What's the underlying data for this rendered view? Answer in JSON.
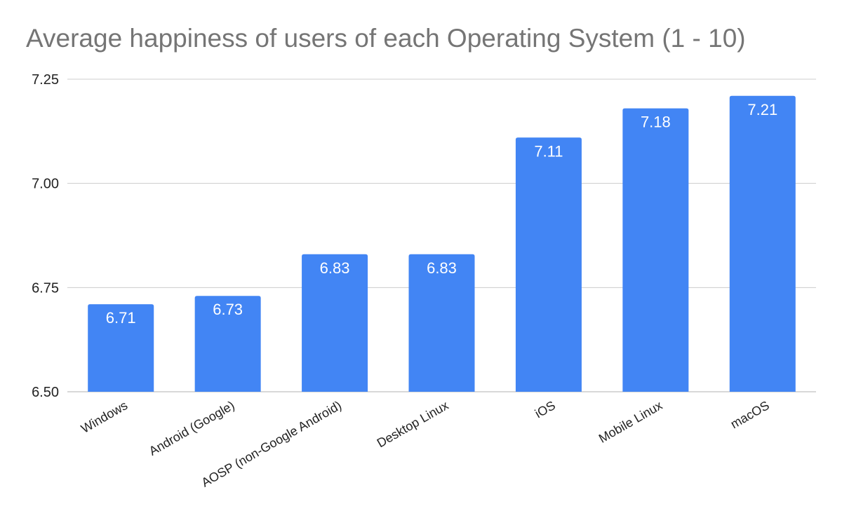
{
  "chart_data": {
    "type": "bar",
    "title": "Average happiness of users of each Operating System (1 - 10)",
    "xlabel": "",
    "ylabel": "",
    "categories": [
      "Windows",
      "Android (Google)",
      "AOSP (non-Google Android)",
      "Desktop Linux",
      "iOS",
      "Mobile Linux",
      "macOS"
    ],
    "values": [
      6.71,
      6.73,
      6.83,
      6.83,
      7.11,
      7.18,
      7.21
    ],
    "data_labels": [
      "6.71",
      "6.73",
      "6.83",
      "6.83",
      "7.11",
      "7.18",
      "7.21"
    ],
    "ylim": [
      6.5,
      7.25
    ],
    "yticks": [
      6.5,
      6.75,
      7.0,
      7.25
    ],
    "ytick_labels": [
      "6.50",
      "6.75",
      "7.00",
      "7.25"
    ],
    "grid": true,
    "legend": "none",
    "bar_color": "#4285f4",
    "gridline_color": "#cccccc",
    "title_color": "#757575"
  }
}
